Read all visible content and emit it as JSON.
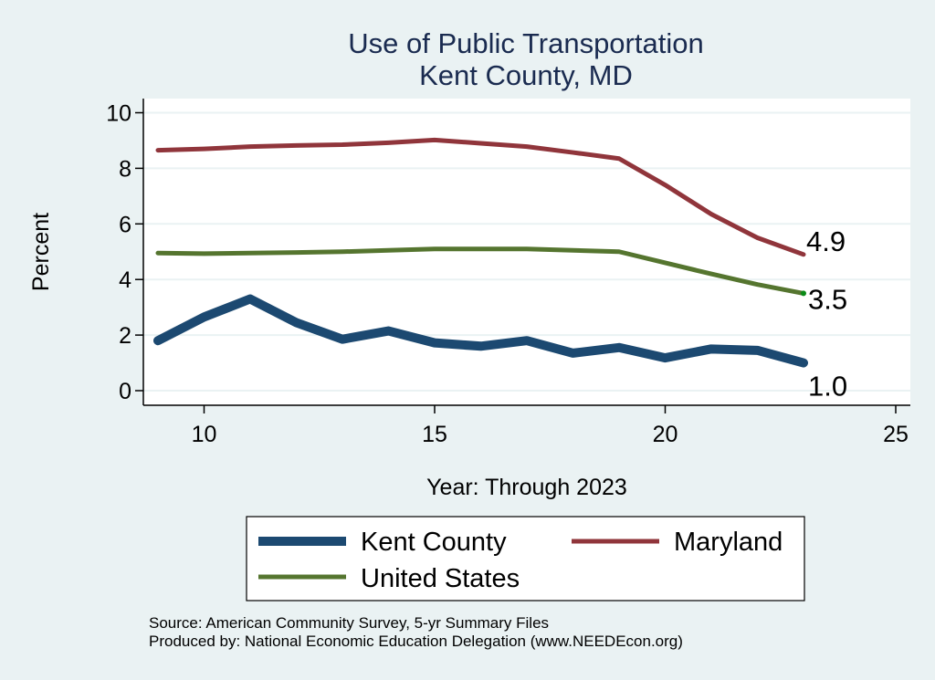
{
  "chart_data": {
    "type": "line",
    "title": [
      "Use of Public Transportation",
      "Kent County, MD"
    ],
    "xlabel": "Year: Through 2023",
    "ylabel": "Percent",
    "xlim": [
      8.7,
      25.3
    ],
    "ylim": [
      -0.6,
      10.5
    ],
    "xticks": [
      10,
      15,
      20,
      25
    ],
    "yticks": [
      0,
      2,
      4,
      6,
      8,
      10
    ],
    "grid": "horizontal",
    "x": [
      9,
      10,
      11,
      12,
      13,
      14,
      15,
      16,
      17,
      18,
      19,
      20,
      21,
      22,
      23
    ],
    "series": [
      {
        "name": "Kent County",
        "color": "#1c4971",
        "width": "thick",
        "values": [
          1.8,
          2.65,
          3.3,
          2.45,
          1.85,
          2.15,
          1.72,
          1.6,
          1.8,
          1.35,
          1.55,
          1.18,
          1.5,
          1.45,
          1.0
        ],
        "end_label": "1.0"
      },
      {
        "name": "Maryland",
        "color": "#90353b",
        "width": "medium",
        "values": [
          8.65,
          8.7,
          8.78,
          8.82,
          8.85,
          8.92,
          9.02,
          8.9,
          8.78,
          8.57,
          8.35,
          7.4,
          6.35,
          5.5,
          4.9
        ],
        "end_label": "4.9"
      },
      {
        "name": "United States",
        "color": "#55752f",
        "width": "medium",
        "values": [
          4.95,
          4.93,
          4.95,
          4.97,
          5.0,
          5.05,
          5.1,
          5.1,
          5.1,
          5.05,
          5.0,
          4.6,
          4.2,
          3.82,
          3.5
        ],
        "end_label": "3.5"
      }
    ],
    "legend": {
      "placement": "bottom",
      "entries": [
        "Kent County",
        "Maryland",
        "United States"
      ]
    },
    "notes": [
      "Source: American Community Survey, 5-yr Summary Files",
      "Produced by: National Economic Education Delegation (www.NEEDEcon.org)"
    ]
  }
}
